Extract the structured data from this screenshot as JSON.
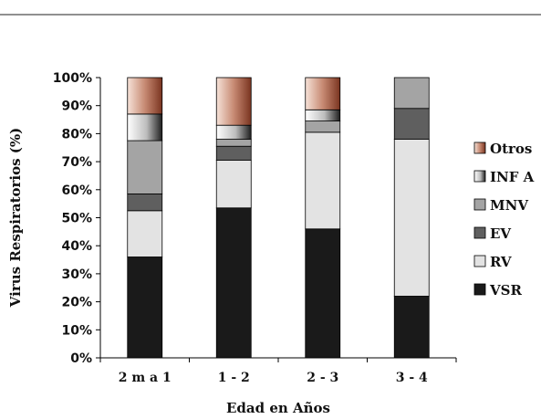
{
  "chart_data": {
    "type": "bar",
    "stacked": true,
    "percent": true,
    "categories": [
      "2 m a 1",
      "1 - 2",
      "2 - 3",
      "3 - 4"
    ],
    "series": [
      {
        "name": "VSR",
        "values": [
          36,
          53.5,
          46,
          22
        ],
        "color": "#1a1a1a"
      },
      {
        "name": "RV",
        "values": [
          16.5,
          17,
          34.5,
          56
        ],
        "color": "#e3e3e3"
      },
      {
        "name": "EV",
        "values": [
          6,
          5,
          0,
          11
        ],
        "color": "#5f5f5f"
      },
      {
        "name": "MNV",
        "values": [
          19,
          2.5,
          4,
          11
        ],
        "color": "#a4a4a4"
      },
      {
        "name": "INF A",
        "values": [
          9.5,
          5,
          4,
          0
        ],
        "color": "#8a8a8a"
      },
      {
        "name": "Otros",
        "values": [
          13,
          17,
          11.5,
          0
        ],
        "color": "#b06a55"
      }
    ],
    "yticks": [
      "0%",
      "10%",
      "20%",
      "30%",
      "40%",
      "50%",
      "60%",
      "70%",
      "80%",
      "90%",
      "100%"
    ],
    "ylim": [
      0,
      100
    ],
    "xlabel": "Edad en Años",
    "ylabel": "Virus Respiratorios (%)",
    "legend": "right",
    "grid": false
  }
}
